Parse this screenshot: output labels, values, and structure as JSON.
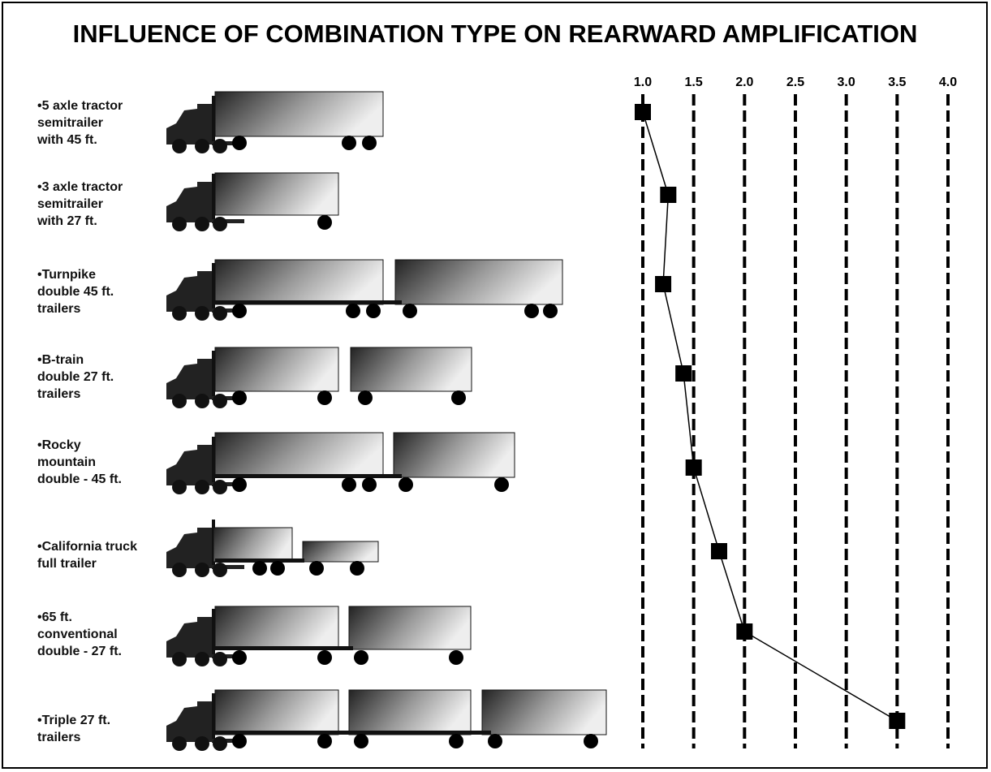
{
  "chart_data": {
    "type": "line",
    "orientation": "horizontal",
    "title": "INFLUENCE OF COMBINATION TYPE ON REARWARD AMPLIFICATION",
    "categories": [
      "•5 axle tractor\nsemitrailer\nwith 45 ft.",
      "•3 axle tractor\nsemitrailer\nwith 27 ft.",
      "•Turnpike\ndouble 45 ft.\ntrailers",
      "•B-train\ndouble 27 ft.\ntrailers",
      "•Rocky\nmountain\ndouble - 45 ft.",
      "•California truck\nfull trailer",
      "•65 ft.\nconventional\ndouble - 27 ft.",
      "•Triple 27 ft.\ntrailers"
    ],
    "values": [
      1.0,
      1.25,
      1.2,
      1.4,
      1.5,
      1.75,
      2.0,
      3.5
    ],
    "color": "#000000",
    "xlim": [
      1,
      4
    ],
    "xticks": [
      {
        "value": 1,
        "label": "1.0"
      },
      1.5,
      {
        "value": 2,
        "label": "2.0"
      },
      2.5,
      {
        "value": 3,
        "label": "3.0"
      },
      3.5,
      {
        "value": 4,
        "label": "4.0"
      }
    ],
    "grid": true
  }
}
